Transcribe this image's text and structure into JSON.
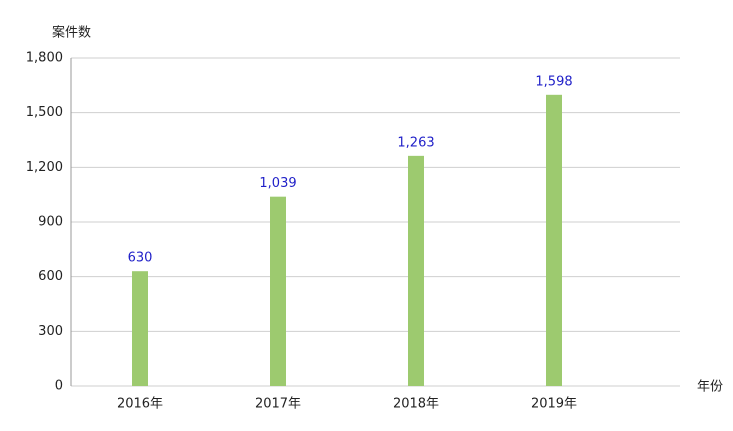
{
  "chart_data": {
    "type": "bar",
    "y_axis_label": "案件数",
    "x_axis_label": "年份",
    "categories": [
      "2016年",
      "2017年",
      "2018年",
      "2019年"
    ],
    "values": [
      630,
      1039,
      1263,
      1598
    ],
    "value_labels": [
      "630",
      "1,039",
      "1,263",
      "1,598"
    ],
    "color": "#9dca6f",
    "value_label_color": "#1f1fc8",
    "ylim": [
      0,
      1800
    ],
    "yticks": [
      0,
      300,
      600,
      900,
      {
        "value": 1200,
        "label": "1,200"
      },
      {
        "value": 1500,
        "label": "1,500"
      },
      {
        "value": 1800,
        "label": "1,800"
      }
    ],
    "grid": true
  }
}
